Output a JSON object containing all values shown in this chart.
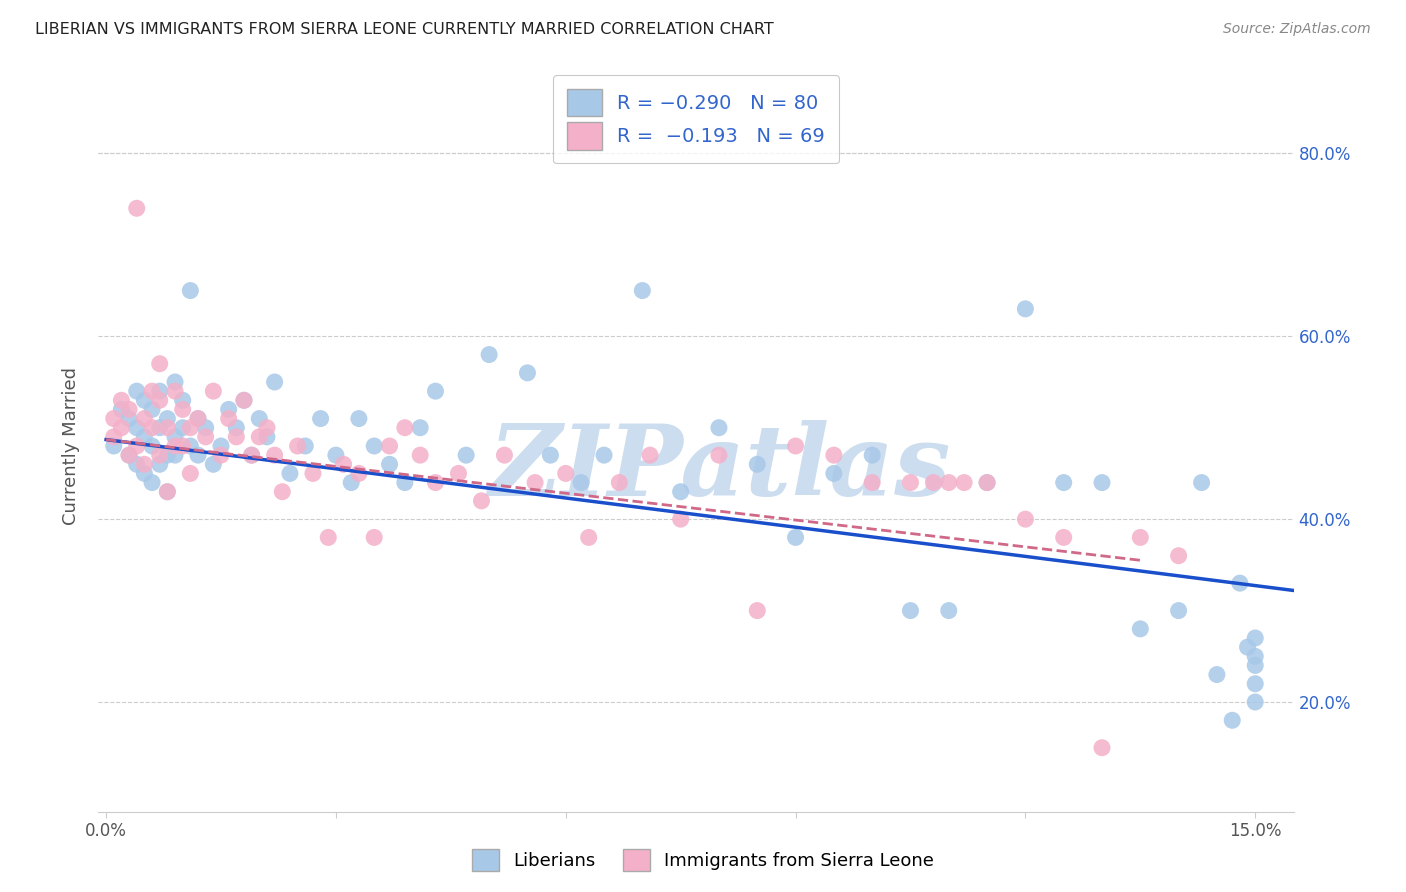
{
  "title": "LIBERIAN VS IMMIGRANTS FROM SIERRA LEONE CURRENTLY MARRIED CORRELATION CHART",
  "source": "Source: ZipAtlas.com",
  "ylabel": "Currently Married",
  "color_blue": "#a8c8e8",
  "color_pink": "#f4b0c8",
  "line_color_blue": "#1a4fcc",
  "line_color_pink": "#d06888",
  "watermark": "ZIPatlas",
  "watermark_color": "#ccddf0",
  "legend_color1": "#a8c8e8",
  "legend_color2": "#f4b0c8",
  "legend_text_color": "#3366cc",
  "right_tick_color": "#3366cc",
  "grid_color": "#cccccc",
  "title_color": "#222222",
  "source_color": "#888888",
  "axis_label_color": "#555555",
  "x_min": 0.0,
  "x_max": 0.155,
  "y_min": 0.08,
  "y_max": 0.88,
  "blue_x": [
    0.001,
    0.002,
    0.003,
    0.003,
    0.004,
    0.004,
    0.004,
    0.005,
    0.005,
    0.005,
    0.006,
    0.006,
    0.006,
    0.007,
    0.007,
    0.007,
    0.008,
    0.008,
    0.008,
    0.009,
    0.009,
    0.009,
    0.01,
    0.01,
    0.011,
    0.011,
    0.012,
    0.012,
    0.013,
    0.014,
    0.015,
    0.016,
    0.017,
    0.018,
    0.019,
    0.02,
    0.021,
    0.022,
    0.024,
    0.026,
    0.028,
    0.03,
    0.032,
    0.033,
    0.035,
    0.037,
    0.039,
    0.041,
    0.043,
    0.047,
    0.05,
    0.055,
    0.058,
    0.062,
    0.065,
    0.07,
    0.075,
    0.08,
    0.085,
    0.09,
    0.095,
    0.1,
    0.105,
    0.11,
    0.115,
    0.12,
    0.125,
    0.13,
    0.135,
    0.14,
    0.143,
    0.145,
    0.147,
    0.148,
    0.149,
    0.15,
    0.15,
    0.15,
    0.15,
    0.15
  ],
  "blue_y": [
    0.48,
    0.52,
    0.47,
    0.51,
    0.46,
    0.5,
    0.54,
    0.45,
    0.49,
    0.53,
    0.44,
    0.48,
    0.52,
    0.46,
    0.5,
    0.54,
    0.43,
    0.47,
    0.51,
    0.55,
    0.47,
    0.49,
    0.53,
    0.5,
    0.65,
    0.48,
    0.47,
    0.51,
    0.5,
    0.46,
    0.48,
    0.52,
    0.5,
    0.53,
    0.47,
    0.51,
    0.49,
    0.55,
    0.45,
    0.48,
    0.51,
    0.47,
    0.44,
    0.51,
    0.48,
    0.46,
    0.44,
    0.5,
    0.54,
    0.47,
    0.58,
    0.56,
    0.47,
    0.44,
    0.47,
    0.65,
    0.43,
    0.5,
    0.46,
    0.38,
    0.45,
    0.47,
    0.3,
    0.3,
    0.44,
    0.63,
    0.44,
    0.44,
    0.28,
    0.3,
    0.44,
    0.23,
    0.18,
    0.33,
    0.26,
    0.27,
    0.25,
    0.24,
    0.22,
    0.2
  ],
  "pink_x": [
    0.001,
    0.001,
    0.002,
    0.002,
    0.003,
    0.003,
    0.004,
    0.004,
    0.005,
    0.005,
    0.006,
    0.006,
    0.007,
    0.007,
    0.007,
    0.008,
    0.008,
    0.009,
    0.009,
    0.01,
    0.01,
    0.011,
    0.011,
    0.012,
    0.013,
    0.014,
    0.015,
    0.016,
    0.017,
    0.018,
    0.019,
    0.02,
    0.021,
    0.022,
    0.023,
    0.025,
    0.027,
    0.029,
    0.031,
    0.033,
    0.035,
    0.037,
    0.039,
    0.041,
    0.043,
    0.046,
    0.049,
    0.052,
    0.056,
    0.06,
    0.063,
    0.067,
    0.071,
    0.075,
    0.08,
    0.085,
    0.09,
    0.095,
    0.1,
    0.105,
    0.108,
    0.11,
    0.112,
    0.115,
    0.12,
    0.125,
    0.13,
    0.135,
    0.14
  ],
  "pink_y": [
    0.49,
    0.51,
    0.5,
    0.53,
    0.47,
    0.52,
    0.74,
    0.48,
    0.46,
    0.51,
    0.5,
    0.54,
    0.47,
    0.53,
    0.57,
    0.5,
    0.43,
    0.54,
    0.48,
    0.48,
    0.52,
    0.5,
    0.45,
    0.51,
    0.49,
    0.54,
    0.47,
    0.51,
    0.49,
    0.53,
    0.47,
    0.49,
    0.5,
    0.47,
    0.43,
    0.48,
    0.45,
    0.38,
    0.46,
    0.45,
    0.38,
    0.48,
    0.5,
    0.47,
    0.44,
    0.45,
    0.42,
    0.47,
    0.44,
    0.45,
    0.38,
    0.44,
    0.47,
    0.4,
    0.47,
    0.3,
    0.48,
    0.47,
    0.44,
    0.44,
    0.44,
    0.44,
    0.44,
    0.44,
    0.4,
    0.38,
    0.15,
    0.38,
    0.36
  ],
  "blue_line": [
    [
      0.0,
      0.155
    ],
    [
      0.487,
      0.322
    ]
  ],
  "pink_line": [
    [
      0.0,
      0.135
    ],
    [
      0.487,
      0.355
    ]
  ],
  "x_tick_positions": [
    0.0,
    0.03,
    0.06,
    0.09,
    0.12,
    0.15
  ],
  "x_tick_labels": [
    "0.0%",
    "",
    "",
    "",
    "",
    "15.0%"
  ],
  "y_tick_positions": [
    0.2,
    0.4,
    0.6,
    0.8
  ],
  "y_tick_labels_right": [
    "20.0%",
    "40.0%",
    "60.0%",
    "80.0%"
  ]
}
